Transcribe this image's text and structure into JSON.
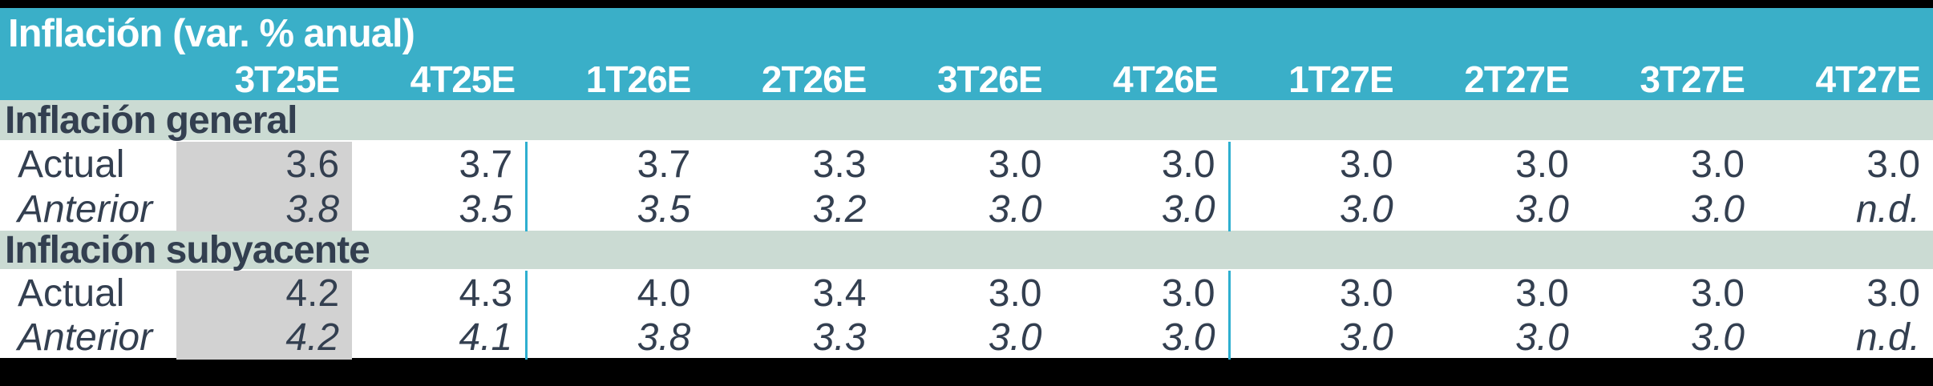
{
  "colors": {
    "header_teal": "#3AAFC8",
    "section_sage": "#CBDBD3",
    "highlight_gray": "#D2D2D2",
    "text_dark": "#333F50",
    "gridline_teal": "#2EAFD0",
    "background_black": "#000000",
    "row_white": "#FFFFFF"
  },
  "chart_data": {
    "type": "table",
    "title": "Inflación (var. % anual)",
    "columns": [
      "3T25E",
      "4T25E",
      "1T26E",
      "2T26E",
      "3T26E",
      "4T26E",
      "1T27E",
      "2T27E",
      "3T27E",
      "4T27E"
    ],
    "highlighted_column": "3T25E",
    "sections": [
      {
        "label": "Inflación general",
        "rows": [
          {
            "label": "Actual",
            "values": [
              "3.6",
              "3.7",
              "3.7",
              "3.3",
              "3.0",
              "3.0",
              "3.0",
              "3.0",
              "3.0",
              "3.0"
            ]
          },
          {
            "label": "Anterior",
            "values": [
              "3.8",
              "3.5",
              "3.5",
              "3.2",
              "3.0",
              "3.0",
              "3.0",
              "3.0",
              "3.0",
              "n.d."
            ]
          }
        ]
      },
      {
        "label": "Inflación subyacente",
        "rows": [
          {
            "label": "Actual",
            "values": [
              "4.2",
              "4.3",
              "4.0",
              "3.4",
              "3.0",
              "3.0",
              "3.0",
              "3.0",
              "3.0",
              "3.0"
            ]
          },
          {
            "label": "Anterior",
            "values": [
              "4.2",
              "4.1",
              "3.8",
              "3.3",
              "3.0",
              "3.0",
              "3.0",
              "3.0",
              "3.0",
              "n.d."
            ]
          }
        ]
      }
    ]
  }
}
